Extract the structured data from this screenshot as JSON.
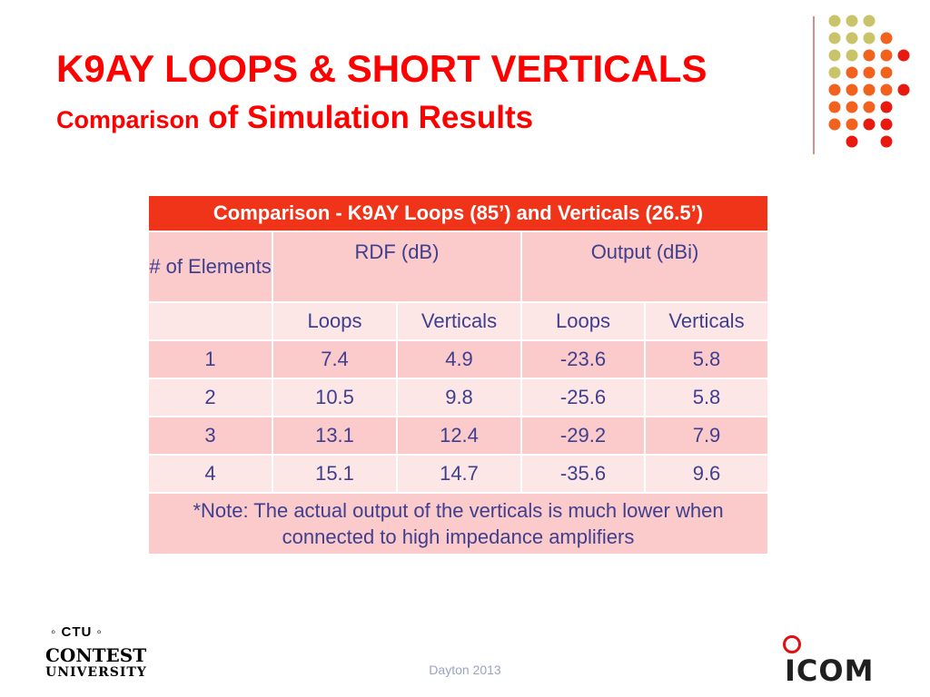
{
  "slide": {
    "title": "K9AY LOOPS & SHORT VERTICALS",
    "subtitle_part1": "Comparison",
    "subtitle_part2": " of Simulation Results"
  },
  "table": {
    "caption": "Comparison - K9AY Loops (85’) and Verticals (26.5’)",
    "header": {
      "elements": "# of Elements",
      "rdf": "RDF (dB)",
      "output": "Output (dBi)"
    },
    "subheader": {
      "blank": "",
      "loops_1": "Loops",
      "verticals_1": "Verticals",
      "loops_2": "Loops",
      "verticals_2": "Verticals"
    },
    "rows": [
      {
        "elements": "1",
        "rdf_loops": "7.4",
        "rdf_verticals": "4.9",
        "out_loops": "-23.6",
        "out_verticals": "5.8"
      },
      {
        "elements": "2",
        "rdf_loops": "10.5",
        "rdf_verticals": "9.8",
        "out_loops": "-25.6",
        "out_verticals": "5.8"
      },
      {
        "elements": "3",
        "rdf_loops": "13.1",
        "rdf_verticals": "12.4",
        "out_loops": "-29.2",
        "out_verticals": "7.9"
      },
      {
        "elements": "4",
        "rdf_loops": "15.1",
        "rdf_verticals": "14.7",
        "out_loops": "-35.6",
        "out_verticals": "9.6"
      }
    ],
    "note": "*Note: The actual output of the verticals is much lower when connected to high impedance amplifiers"
  },
  "footer": {
    "text": "Dayton 2013"
  },
  "logos": {
    "ctu_badge": "◦ CTU ◦",
    "ctu_line1": "CONTEST",
    "ctu_line2": "UNIVERSITY",
    "icom_text": "ICOM"
  },
  "colors": {
    "title": "#ff0000",
    "table_header": "#f0341a",
    "row_dark": "#fbcaca",
    "row_light": "#fde6e6",
    "table_text": "#3f3f8f",
    "dot_olive": "#c9c46a",
    "dot_orange": "#f2611d",
    "dot_red": "#e8190f"
  }
}
